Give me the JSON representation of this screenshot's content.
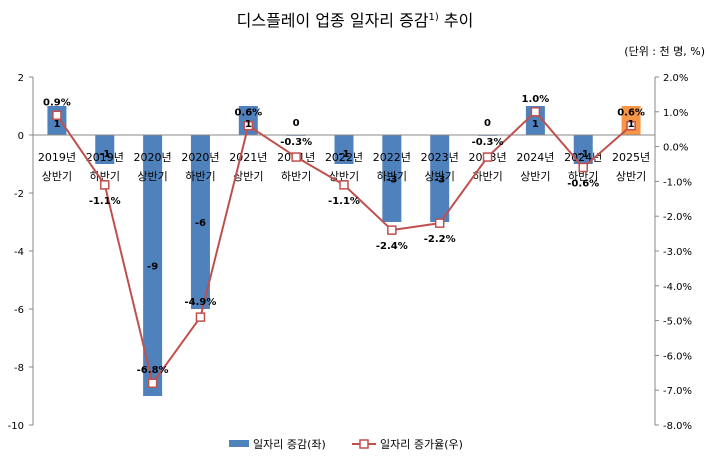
{
  "chart_data": {
    "type": "bar",
    "title": "디스플레이 업종 일자리 증감",
    "title_sup": "1)",
    "title_suffix": " 추이",
    "unit_label": "(단위 : 천 명, %)",
    "categories": [
      [
        "2019년",
        "상반기"
      ],
      [
        "2019년",
        "하반기"
      ],
      [
        "2020년",
        "상반기"
      ],
      [
        "2020년",
        "하반기"
      ],
      [
        "2021년",
        "상반기"
      ],
      [
        "2021년",
        "하반기"
      ],
      [
        "2022년",
        "상반기"
      ],
      [
        "2022년",
        "하반기"
      ],
      [
        "2023년",
        "상반기"
      ],
      [
        "2023년",
        "하반기"
      ],
      [
        "2024년",
        "상반기"
      ],
      [
        "2024년",
        "하반기"
      ],
      [
        "2025년",
        "상반기"
      ]
    ],
    "series": [
      {
        "name": "일자리 증감(좌)",
        "type": "bar",
        "axis": "left",
        "values": [
          1,
          -1,
          -9,
          -6,
          1,
          0,
          -1,
          -3,
          -3,
          0,
          1,
          -1,
          1
        ],
        "labels": [
          "1",
          "-1",
          "-9",
          "-6",
          "1",
          "0",
          "-1",
          "-3",
          "-3",
          "0",
          "1",
          "-1",
          "1"
        ]
      },
      {
        "name": "일자리 증가율(우)",
        "type": "line",
        "axis": "right",
        "values": [
          0.9,
          -1.1,
          -6.8,
          -4.9,
          0.6,
          -0.3,
          -1.1,
          -2.4,
          -2.2,
          -0.3,
          1.0,
          -0.6,
          0.6
        ],
        "labels": [
          "0.9%",
          "-1.1%",
          "-6.8%",
          "-4.9%",
          "0.6%",
          "-0.3%",
          "-1.1%",
          "-2.4%",
          "-2.2%",
          "-0.3%",
          "1.0%",
          "-0.6%",
          "0.6%"
        ]
      }
    ],
    "y_left": {
      "lim": [
        -10,
        2
      ],
      "ticks": [
        "2",
        "0",
        "-2",
        "-4",
        "-6",
        "-8",
        "-10"
      ]
    },
    "y_right": {
      "lim": [
        -8,
        2
      ],
      "ticks": [
        "2.0%",
        "1.0%",
        "0.0%",
        "-1.0%",
        "-2.0%",
        "-3.0%",
        "-4.0%",
        "-5.0%",
        "-6.0%",
        "-7.0%",
        "-8.0%"
      ]
    },
    "grid": false,
    "legend_position": "bottom",
    "colors": {
      "bar": "#4f81bd",
      "bar_highlight": "#f79646",
      "line": "#c0504d",
      "highlight_label": "#c00000"
    },
    "highlight_index": 12
  }
}
